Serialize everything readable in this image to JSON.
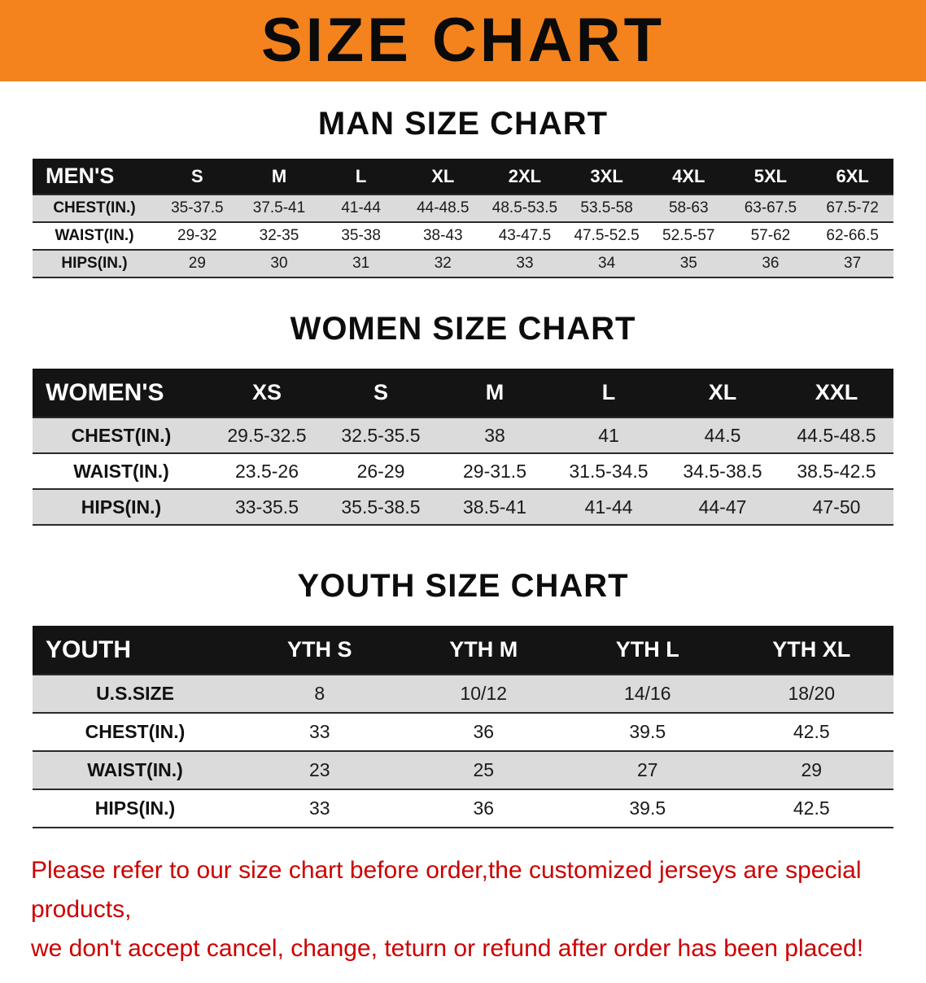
{
  "banner": {
    "title": "SIZE CHART",
    "bg_color": "#f4831e",
    "text_color": "#0a0a0a"
  },
  "colors": {
    "table_header_bg": "#141414",
    "row_stripe": "#dbdbdb",
    "disclaimer_red": "#cc0000"
  },
  "sections": [
    {
      "heading": "MAN SIZE CHART",
      "table": {
        "header": [
          "MEN'S",
          "S",
          "M",
          "L",
          "XL",
          "2XL",
          "3XL",
          "4XL",
          "5XL",
          "6XL"
        ],
        "rows": [
          [
            "CHEST(IN.)",
            "35-37.5",
            "37.5-41",
            "41-44",
            "44-48.5",
            "48.5-53.5",
            "53.5-58",
            "58-63",
            "63-67.5",
            "67.5-72"
          ],
          [
            "WAIST(IN.)",
            "29-32",
            "32-35",
            "35-38",
            "38-43",
            "43-47.5",
            "47.5-52.5",
            "52.5-57",
            "57-62",
            "62-66.5"
          ],
          [
            "HIPS(IN.)",
            "29",
            "30",
            "31",
            "32",
            "33",
            "34",
            "35",
            "36",
            "37"
          ]
        ]
      }
    },
    {
      "heading": "WOMEN SIZE CHART",
      "table": {
        "header": [
          "WOMEN'S",
          "XS",
          "S",
          "M",
          "L",
          "XL",
          "XXL"
        ],
        "rows": [
          [
            "CHEST(IN.)",
            "29.5-32.5",
            "32.5-35.5",
            "38",
            "41",
            "44.5",
            "44.5-48.5"
          ],
          [
            "WAIST(IN.)",
            "23.5-26",
            "26-29",
            "29-31.5",
            "31.5-34.5",
            "34.5-38.5",
            "38.5-42.5"
          ],
          [
            "HIPS(IN.)",
            "33-35.5",
            "35.5-38.5",
            "38.5-41",
            "41-44",
            "44-47",
            "47-50"
          ]
        ]
      }
    },
    {
      "heading": "YOUTH SIZE CHART",
      "table": {
        "header": [
          "YOUTH",
          "YTH S",
          "YTH M",
          "YTH L",
          "YTH XL"
        ],
        "rows": [
          [
            "U.S.SIZE",
            "8",
            "10/12",
            "14/16",
            "18/20"
          ],
          [
            "CHEST(IN.)",
            "33",
            "36",
            "39.5",
            "42.5"
          ],
          [
            "WAIST(IN.)",
            "23",
            "25",
            "27",
            "29"
          ],
          [
            "HIPS(IN.)",
            "33",
            "36",
            "39.5",
            "42.5"
          ]
        ]
      }
    }
  ],
  "disclaimer": {
    "line1": "Please refer to our size chart before order,the customized jerseys are special products,",
    "line2": "we don't accept cancel, change, teturn or refund after order has been placed!"
  }
}
